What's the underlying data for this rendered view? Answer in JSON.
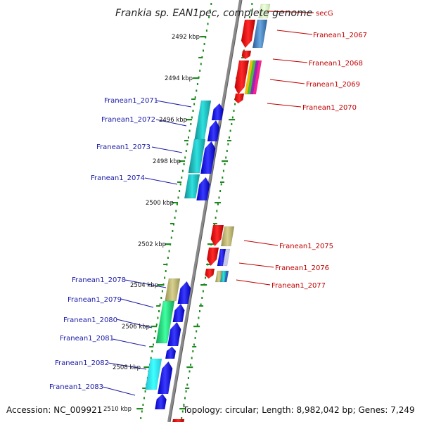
{
  "title": "Frankia sp. EAN1pec, complete genome",
  "accession": "Accession: NC_009921",
  "topology": "Topology: circular; Length: 8,982,042 bp; Genes: 7,249",
  "kbp_labels": [
    "2492 kbp",
    "2494 kbp",
    "2496 kbp",
    "2498 kbp",
    "2500 kbp",
    "2502 kbp",
    "2504 kbp",
    "2506 kbp",
    "2508 kbp",
    "2510 kbp"
  ],
  "right_genes": [
    "secG",
    "Franean1_2067",
    "Franean1_2068",
    "Franean1_2069",
    "Franean1_2070",
    "Franean1_2075",
    "Franean1_2076",
    "Franean1_2077"
  ],
  "left_genes": [
    "Franean1_2071",
    "Franean1_2072",
    "Franean1_2073",
    "Franean1_2074",
    "Franean1_2078",
    "Franean1_2079",
    "Franean1_2080",
    "Franean1_2081",
    "Franean1_2082",
    "Franean1_2083"
  ],
  "colors": {
    "backbone": "#8a8a8a",
    "tick": "#1e8a1e",
    "right_label": "#c00000",
    "left_label": "#1a1aa6",
    "cds": "#1010e0",
    "cds_rev": "#e00000",
    "cog_teal": "#22c8c8",
    "cog_blue": "#4a8ac8",
    "cog_olive": "#c8c080",
    "cog_green": "#20e080",
    "cog_lightgreen": "#d8f0c0"
  }
}
